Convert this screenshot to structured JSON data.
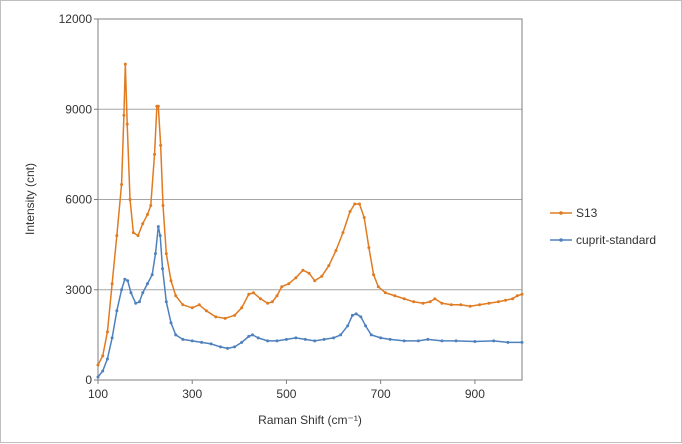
{
  "chart_data": {
    "type": "line",
    "title": "",
    "xlabel": "Raman Shift (cm⁻¹)",
    "ylabel": "Intensity (cnt)",
    "xlim": [
      100,
      1000
    ],
    "ylim": [
      0,
      12000
    ],
    "x_ticks": [
      100,
      300,
      500,
      700,
      900
    ],
    "y_ticks": [
      0,
      3000,
      6000,
      9000,
      12000
    ],
    "grid": "horizontal",
    "legend_position": "right",
    "series": [
      {
        "name": "S13",
        "color": "#e07b22",
        "points": [
          [
            100,
            500
          ],
          [
            110,
            800
          ],
          [
            120,
            1600
          ],
          [
            130,
            3200
          ],
          [
            140,
            4800
          ],
          [
            150,
            6500
          ],
          [
            155,
            8800
          ],
          [
            158,
            10500
          ],
          [
            162,
            8500
          ],
          [
            168,
            6000
          ],
          [
            175,
            4900
          ],
          [
            185,
            4800
          ],
          [
            195,
            5200
          ],
          [
            205,
            5500
          ],
          [
            212,
            5800
          ],
          [
            220,
            7500
          ],
          [
            225,
            9100
          ],
          [
            228,
            9100
          ],
          [
            233,
            7800
          ],
          [
            238,
            5800
          ],
          [
            245,
            4200
          ],
          [
            255,
            3300
          ],
          [
            265,
            2800
          ],
          [
            280,
            2500
          ],
          [
            300,
            2400
          ],
          [
            315,
            2500
          ],
          [
            330,
            2300
          ],
          [
            350,
            2100
          ],
          [
            370,
            2050
          ],
          [
            390,
            2150
          ],
          [
            405,
            2400
          ],
          [
            420,
            2850
          ],
          [
            430,
            2900
          ],
          [
            445,
            2700
          ],
          [
            460,
            2550
          ],
          [
            470,
            2600
          ],
          [
            480,
            2800
          ],
          [
            490,
            3100
          ],
          [
            505,
            3200
          ],
          [
            520,
            3400
          ],
          [
            535,
            3650
          ],
          [
            548,
            3550
          ],
          [
            560,
            3300
          ],
          [
            575,
            3450
          ],
          [
            590,
            3800
          ],
          [
            605,
            4300
          ],
          [
            620,
            4900
          ],
          [
            635,
            5600
          ],
          [
            645,
            5850
          ],
          [
            655,
            5850
          ],
          [
            665,
            5400
          ],
          [
            675,
            4400
          ],
          [
            685,
            3500
          ],
          [
            695,
            3100
          ],
          [
            710,
            2900
          ],
          [
            730,
            2800
          ],
          [
            750,
            2700
          ],
          [
            770,
            2600
          ],
          [
            790,
            2550
          ],
          [
            805,
            2600
          ],
          [
            815,
            2700
          ],
          [
            830,
            2550
          ],
          [
            850,
            2500
          ],
          [
            870,
            2500
          ],
          [
            890,
            2450
          ],
          [
            910,
            2500
          ],
          [
            930,
            2550
          ],
          [
            950,
            2600
          ],
          [
            965,
            2650
          ],
          [
            980,
            2700
          ],
          [
            990,
            2800
          ],
          [
            1000,
            2850
          ]
        ]
      },
      {
        "name": "cuprit-standard",
        "color": "#4f81bd",
        "points": [
          [
            100,
            100
          ],
          [
            110,
            300
          ],
          [
            120,
            700
          ],
          [
            130,
            1400
          ],
          [
            140,
            2300
          ],
          [
            150,
            3000
          ],
          [
            157,
            3350
          ],
          [
            163,
            3300
          ],
          [
            170,
            2900
          ],
          [
            180,
            2550
          ],
          [
            188,
            2600
          ],
          [
            195,
            2900
          ],
          [
            205,
            3200
          ],
          [
            215,
            3500
          ],
          [
            222,
            4200
          ],
          [
            228,
            5100
          ],
          [
            232,
            4800
          ],
          [
            237,
            3700
          ],
          [
            245,
            2600
          ],
          [
            255,
            1900
          ],
          [
            265,
            1500
          ],
          [
            280,
            1350
          ],
          [
            300,
            1300
          ],
          [
            320,
            1250
          ],
          [
            340,
            1200
          ],
          [
            360,
            1100
          ],
          [
            375,
            1050
          ],
          [
            390,
            1100
          ],
          [
            405,
            1250
          ],
          [
            420,
            1450
          ],
          [
            428,
            1500
          ],
          [
            440,
            1400
          ],
          [
            460,
            1300
          ],
          [
            480,
            1300
          ],
          [
            500,
            1350
          ],
          [
            520,
            1400
          ],
          [
            540,
            1350
          ],
          [
            560,
            1300
          ],
          [
            580,
            1350
          ],
          [
            600,
            1400
          ],
          [
            615,
            1500
          ],
          [
            630,
            1800
          ],
          [
            640,
            2150
          ],
          [
            648,
            2200
          ],
          [
            658,
            2100
          ],
          [
            668,
            1800
          ],
          [
            680,
            1500
          ],
          [
            700,
            1400
          ],
          [
            720,
            1350
          ],
          [
            750,
            1300
          ],
          [
            780,
            1300
          ],
          [
            800,
            1350
          ],
          [
            830,
            1300
          ],
          [
            860,
            1300
          ],
          [
            900,
            1280
          ],
          [
            940,
            1300
          ],
          [
            970,
            1250
          ],
          [
            1000,
            1250
          ]
        ]
      }
    ]
  }
}
